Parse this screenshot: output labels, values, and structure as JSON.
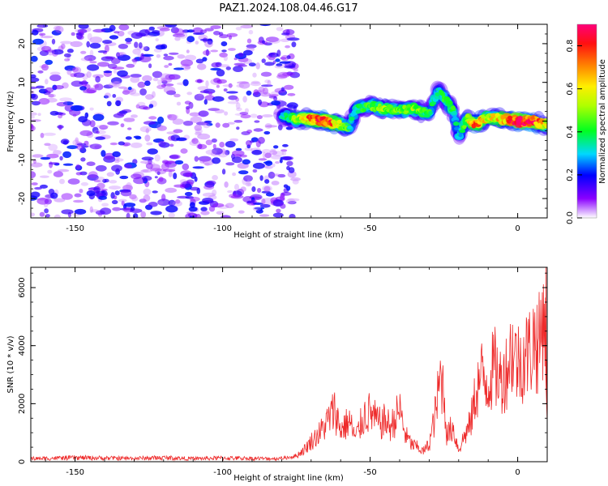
{
  "title": "PAZ1.2024.108.04.46.G17",
  "chart_data": [
    {
      "type": "heatmap",
      "xlabel": "Height of straight line (km)",
      "ylabel": "Frequency (Hz)",
      "xlim": [
        -165,
        10
      ],
      "ylim": [
        -25,
        25
      ],
      "x_ticks": [
        -150,
        -100,
        -50,
        0
      ],
      "x_tick_labels": [
        "-150",
        "-100",
        "-50",
        "0"
      ],
      "y_ticks": [
        -20,
        -10,
        0,
        10,
        20
      ],
      "y_tick_labels": [
        "-20",
        "-10",
        "0",
        "10",
        "20"
      ],
      "colorbar": {
        "label": "Normalized spectral amplitude",
        "range": [
          0,
          0.9
        ],
        "ticks": [
          0.0,
          0.2,
          0.4,
          0.6,
          0.8
        ],
        "tick_labels": [
          "0.0",
          "0.2",
          "0.4",
          "0.6",
          "0.8"
        ]
      },
      "background_noise": {
        "x_range": [
          -165,
          -75
        ],
        "y_range": [
          -25,
          25
        ],
        "amplitude": [
          0.0,
          0.18
        ]
      },
      "signal_track": {
        "x": [
          -80,
          -75,
          -70,
          -65,
          -60,
          -57,
          -55,
          -50,
          -45,
          -40,
          -35,
          -30,
          -27,
          -25,
          -22,
          -20,
          -17,
          -15,
          -10,
          -5,
          0,
          5,
          10
        ],
        "frequency": [
          1.5,
          0.5,
          0.5,
          0.0,
          -1.0,
          -1.5,
          3.0,
          4.0,
          3.0,
          3.0,
          3.0,
          2.0,
          8.0,
          6.0,
          3.0,
          -4.0,
          1.0,
          -1.0,
          1.0,
          0.5,
          0.0,
          0.0,
          -1.0
        ],
        "amplitude": [
          0.25,
          0.45,
          0.7,
          0.8,
          0.55,
          0.35,
          0.3,
          0.4,
          0.45,
          0.4,
          0.45,
          0.35,
          0.3,
          0.35,
          0.35,
          0.25,
          0.45,
          0.7,
          0.55,
          0.6,
          0.85,
          0.8,
          0.5
        ]
      },
      "grid": false
    },
    {
      "type": "line",
      "xlabel": "Height of straight line (km)",
      "ylabel": "SNR (10 * v/v)",
      "xlim": [
        -165,
        10
      ],
      "ylim": [
        0,
        6700
      ],
      "x_ticks": [
        -150,
        -100,
        -50,
        0
      ],
      "x_tick_labels": [
        "-150",
        "-100",
        "-50",
        "0"
      ],
      "y_ticks": [
        0,
        2000,
        4000,
        6000
      ],
      "y_tick_labels": [
        "0",
        "2000",
        "4000",
        "6000"
      ],
      "color": "#ee2a2a",
      "grid": false,
      "series": [
        {
          "x": [
            -165,
            -150,
            -140,
            -130,
            -120,
            -110,
            -100,
            -90,
            -85,
            -80,
            -75,
            -72,
            -70,
            -67,
            -65,
            -62,
            -60,
            -57,
            -55,
            -52,
            -50,
            -47,
            -45,
            -43,
            -40,
            -38,
            -36,
            -34,
            -32,
            -30,
            -28,
            -26,
            -25,
            -24,
            -22,
            -20,
            -18,
            -16,
            -14,
            -12,
            -10,
            -8,
            -6,
            -4,
            -2,
            0,
            2,
            4,
            6,
            7,
            8,
            9,
            10
          ],
          "y": [
            100,
            130,
            120,
            110,
            130,
            100,
            120,
            110,
            100,
            110,
            200,
            450,
            700,
            1000,
            1300,
            1800,
            1100,
            1400,
            800,
            1600,
            1700,
            1300,
            1400,
            1200,
            1800,
            900,
            600,
            500,
            350,
            600,
            1600,
            3000,
            2400,
            900,
            1200,
            400,
            900,
            1300,
            2500,
            3000,
            2700,
            3300,
            2800,
            3100,
            3900,
            3400,
            3600,
            3800,
            4300,
            3900,
            4500,
            5600,
            2200
          ],
          "spike": {
            "x": 9.6,
            "y": 6700
          }
        }
      ]
    }
  ]
}
